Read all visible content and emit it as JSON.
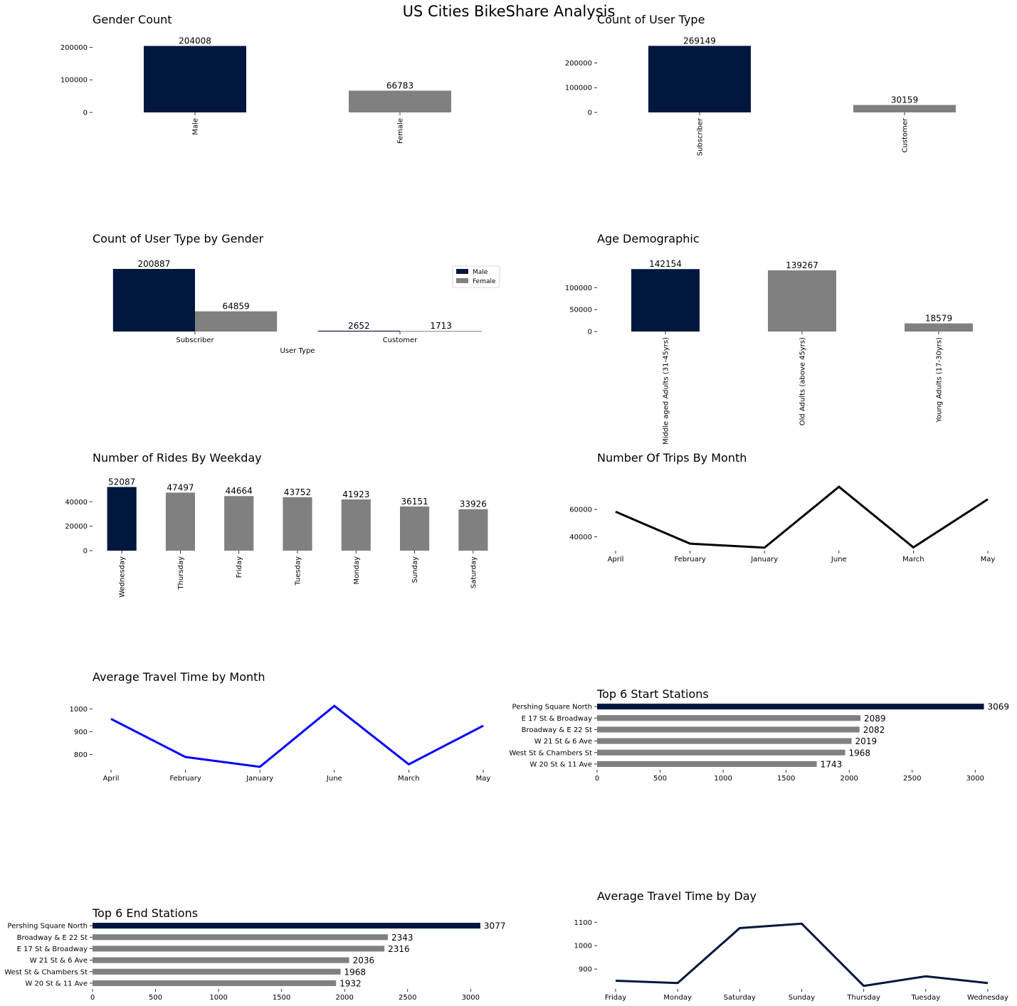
{
  "title": "US Cities BikeShare Analysis",
  "colors": {
    "primary": "#02173e",
    "secondary": "#808080",
    "blue": "#0000ff",
    "black": "#000000"
  },
  "chart_data": [
    {
      "type": "bar",
      "title": "Gender Count",
      "categories": [
        "Male",
        "Female"
      ],
      "values": [
        204008,
        66783
      ],
      "yticks": [
        0,
        100000,
        200000
      ],
      "ylim": [
        0,
        214000
      ]
    },
    {
      "type": "bar",
      "title": "Count of User Type",
      "categories": [
        "Subscriber",
        "Customer"
      ],
      "values": [
        269149,
        30159
      ],
      "yticks": [
        0,
        100000,
        200000
      ],
      "ylim": [
        0,
        282000
      ]
    },
    {
      "type": "bar",
      "title": "Count of User Type by Gender",
      "xlabel": "User Type",
      "categories": [
        "Subscriber",
        "Customer"
      ],
      "series": [
        {
          "name": "Male",
          "values": [
            200887,
            2652
          ]
        },
        {
          "name": "Female",
          "values": [
            64859,
            1713
          ]
        }
      ],
      "ylim": [
        0,
        210000
      ],
      "legend": "top-right"
    },
    {
      "type": "bar",
      "title": "Age Demographic",
      "categories": [
        "Middle aged Adults (31-45yrs)",
        "Old Adults (above 45yrs)",
        "Young Adults (17-30yrs)"
      ],
      "values": [
        142154,
        139267,
        18579
      ],
      "yticks": [
        0,
        50000,
        100000
      ],
      "ylim": [
        0,
        149000
      ]
    },
    {
      "type": "bar",
      "title": "Number of Rides By Weekday",
      "categories": [
        "Wednesday",
        "Thursday",
        "Friday",
        "Tuesday",
        "Monday",
        "Sunday",
        "Saturday"
      ],
      "values": [
        52087,
        47497,
        44664,
        43752,
        41923,
        36151,
        33926
      ],
      "yticks": [
        0,
        20000,
        40000
      ],
      "ylim": [
        0,
        54700
      ]
    },
    {
      "type": "line",
      "title": "Number Of Trips By Month",
      "categories": [
        "April",
        "February",
        "January",
        "June",
        "March",
        "May"
      ],
      "values": [
        58300,
        35000,
        32100,
        76500,
        32300,
        67400
      ],
      "yticks": [
        40000,
        60000
      ],
      "ylim": [
        29900,
        78700
      ]
    },
    {
      "type": "line",
      "title": "Average Travel Time by Month",
      "categories": [
        "April",
        "February",
        "January",
        "June",
        "March",
        "May"
      ],
      "values": [
        956,
        789,
        746,
        1013,
        757,
        926
      ],
      "yticks": [
        800,
        900,
        1000
      ],
      "ylim": [
        733,
        1026
      ]
    },
    {
      "type": "bar",
      "orientation": "horizontal",
      "title": "Top 6 Start Stations",
      "categories": [
        "Pershing Square North",
        "E 17 St & Broadway",
        "Broadway & E 22 St",
        "W 21 St & 6 Ave",
        "West St & Chambers St",
        "W 20 St & 11 Ave"
      ],
      "values": [
        3069,
        2089,
        2082,
        2019,
        1968,
        1743
      ],
      "xticks": [
        0,
        500,
        1000,
        1500,
        2000,
        2500,
        3000
      ],
      "xlim": [
        0,
        3100
      ]
    },
    {
      "type": "bar",
      "orientation": "horizontal",
      "title": "Top 6 End Stations",
      "categories": [
        "Pershing Square North",
        "Broadway & E 22 St",
        "E 17 St & Broadway",
        "W 21 St & 6 Ave",
        "West St & Chambers St",
        "W 20 St & 11 Ave"
      ],
      "values": [
        3077,
        2343,
        2316,
        2036,
        1968,
        1932
      ],
      "xticks": [
        0,
        500,
        1000,
        1500,
        2000,
        2500,
        3000
      ],
      "xlim": [
        0,
        3100
      ]
    },
    {
      "type": "line",
      "title": "Average Travel Time by Day",
      "categories": [
        "Friday",
        "Monday",
        "Saturday",
        "Sunday",
        "Thursday",
        "Tuesday",
        "Wednesday"
      ],
      "values": [
        850,
        840,
        1075,
        1094,
        828,
        869,
        840
      ],
      "yticks": [
        900,
        1000,
        1100
      ],
      "ylim": [
        815,
        1110
      ]
    }
  ]
}
